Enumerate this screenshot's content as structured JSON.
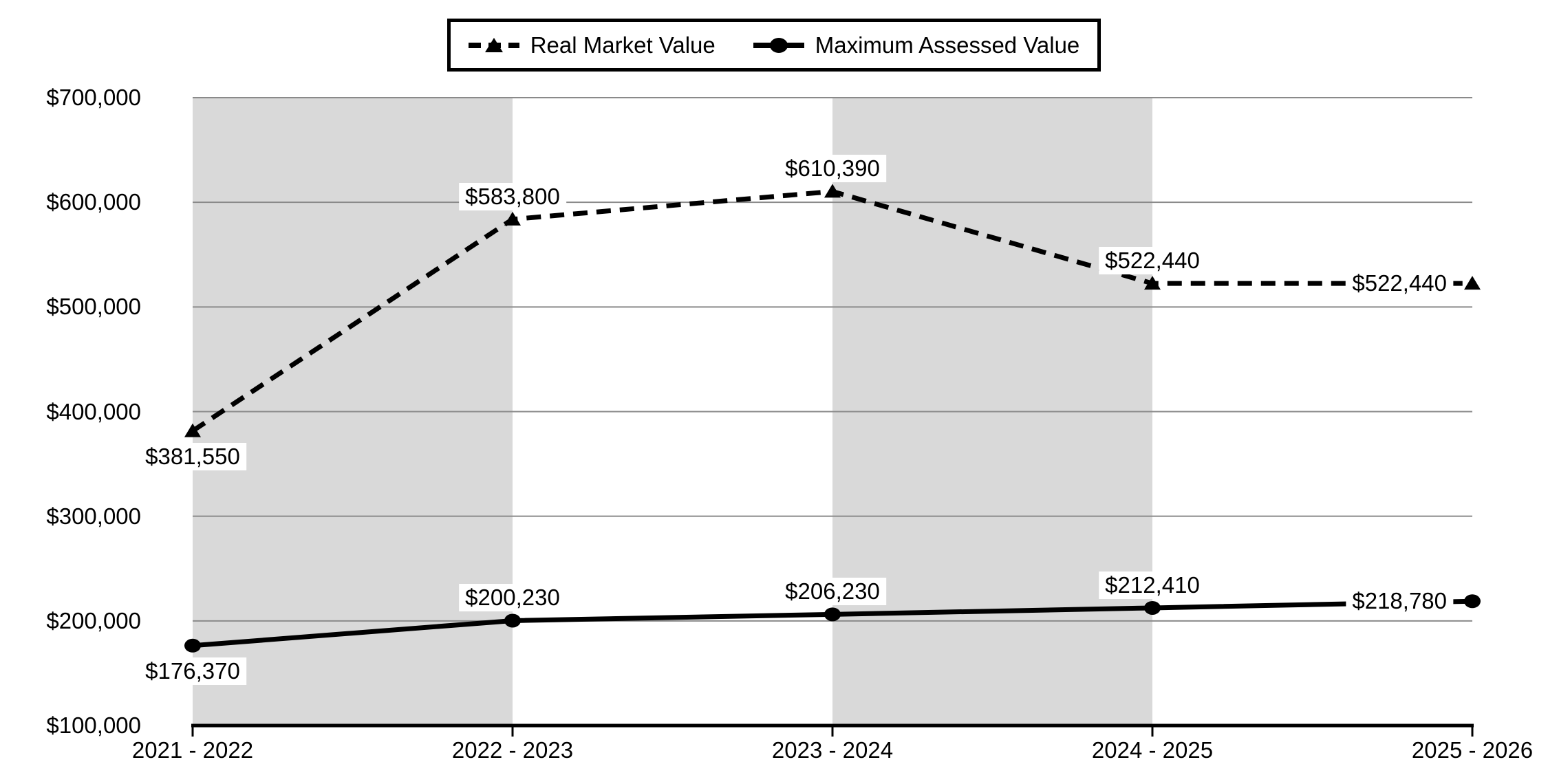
{
  "legend": {
    "items": [
      {
        "label": "Real Market Value",
        "line": "dashed",
        "marker": "triangle"
      },
      {
        "label": "Maximum Assessed Value",
        "line": "solid",
        "marker": "circle"
      }
    ]
  },
  "chart_data": {
    "type": "line",
    "title": "",
    "xlabel": "",
    "ylabel": "",
    "categories": [
      "2021 - 2022",
      "2022 - 2023",
      "2023 - 2024",
      "2024 - 2025",
      "2025 - 2026"
    ],
    "series": [
      {
        "name": "Real Market Value",
        "values": [
          381550,
          583800,
          610390,
          522440,
          522440
        ],
        "labels": [
          "$381,550",
          "$583,800",
          "$610,390",
          "$522,440",
          "$522,440"
        ],
        "label_positions": [
          "below",
          "above",
          "above",
          "above",
          "left"
        ],
        "line_style": "dashed",
        "marker": "triangle",
        "color": "#000000"
      },
      {
        "name": "Maximum Assessed Value",
        "values": [
          176370,
          200230,
          206230,
          212410,
          218780
        ],
        "labels": [
          "$176,370",
          "$200,230",
          "$206,230",
          "$212,410",
          "$218,780"
        ],
        "label_positions": [
          "below",
          "above",
          "above",
          "above",
          "left"
        ],
        "line_style": "solid",
        "marker": "circle",
        "color": "#000000"
      }
    ],
    "ylim": [
      100000,
      700000
    ],
    "y_ticks": [
      100000,
      200000,
      300000,
      400000,
      500000,
      600000,
      700000
    ],
    "y_tick_labels": [
      "$100,000",
      "$200,000",
      "$300,000",
      "$400,000",
      "$500,000",
      "$600,000",
      "$700,000"
    ],
    "grid": "horizontal",
    "legend_position": "top-center",
    "plot_bands": {
      "indices": [
        [
          0,
          1
        ],
        [
          2,
          3
        ]
      ],
      "color": "#d9d9d9"
    },
    "colors": {
      "gridline": "#8a8a8a",
      "axis": "#000000",
      "band": "#d9d9d9",
      "background": "#ffffff",
      "text": "#000000",
      "label_bg": "#ffffff"
    }
  }
}
